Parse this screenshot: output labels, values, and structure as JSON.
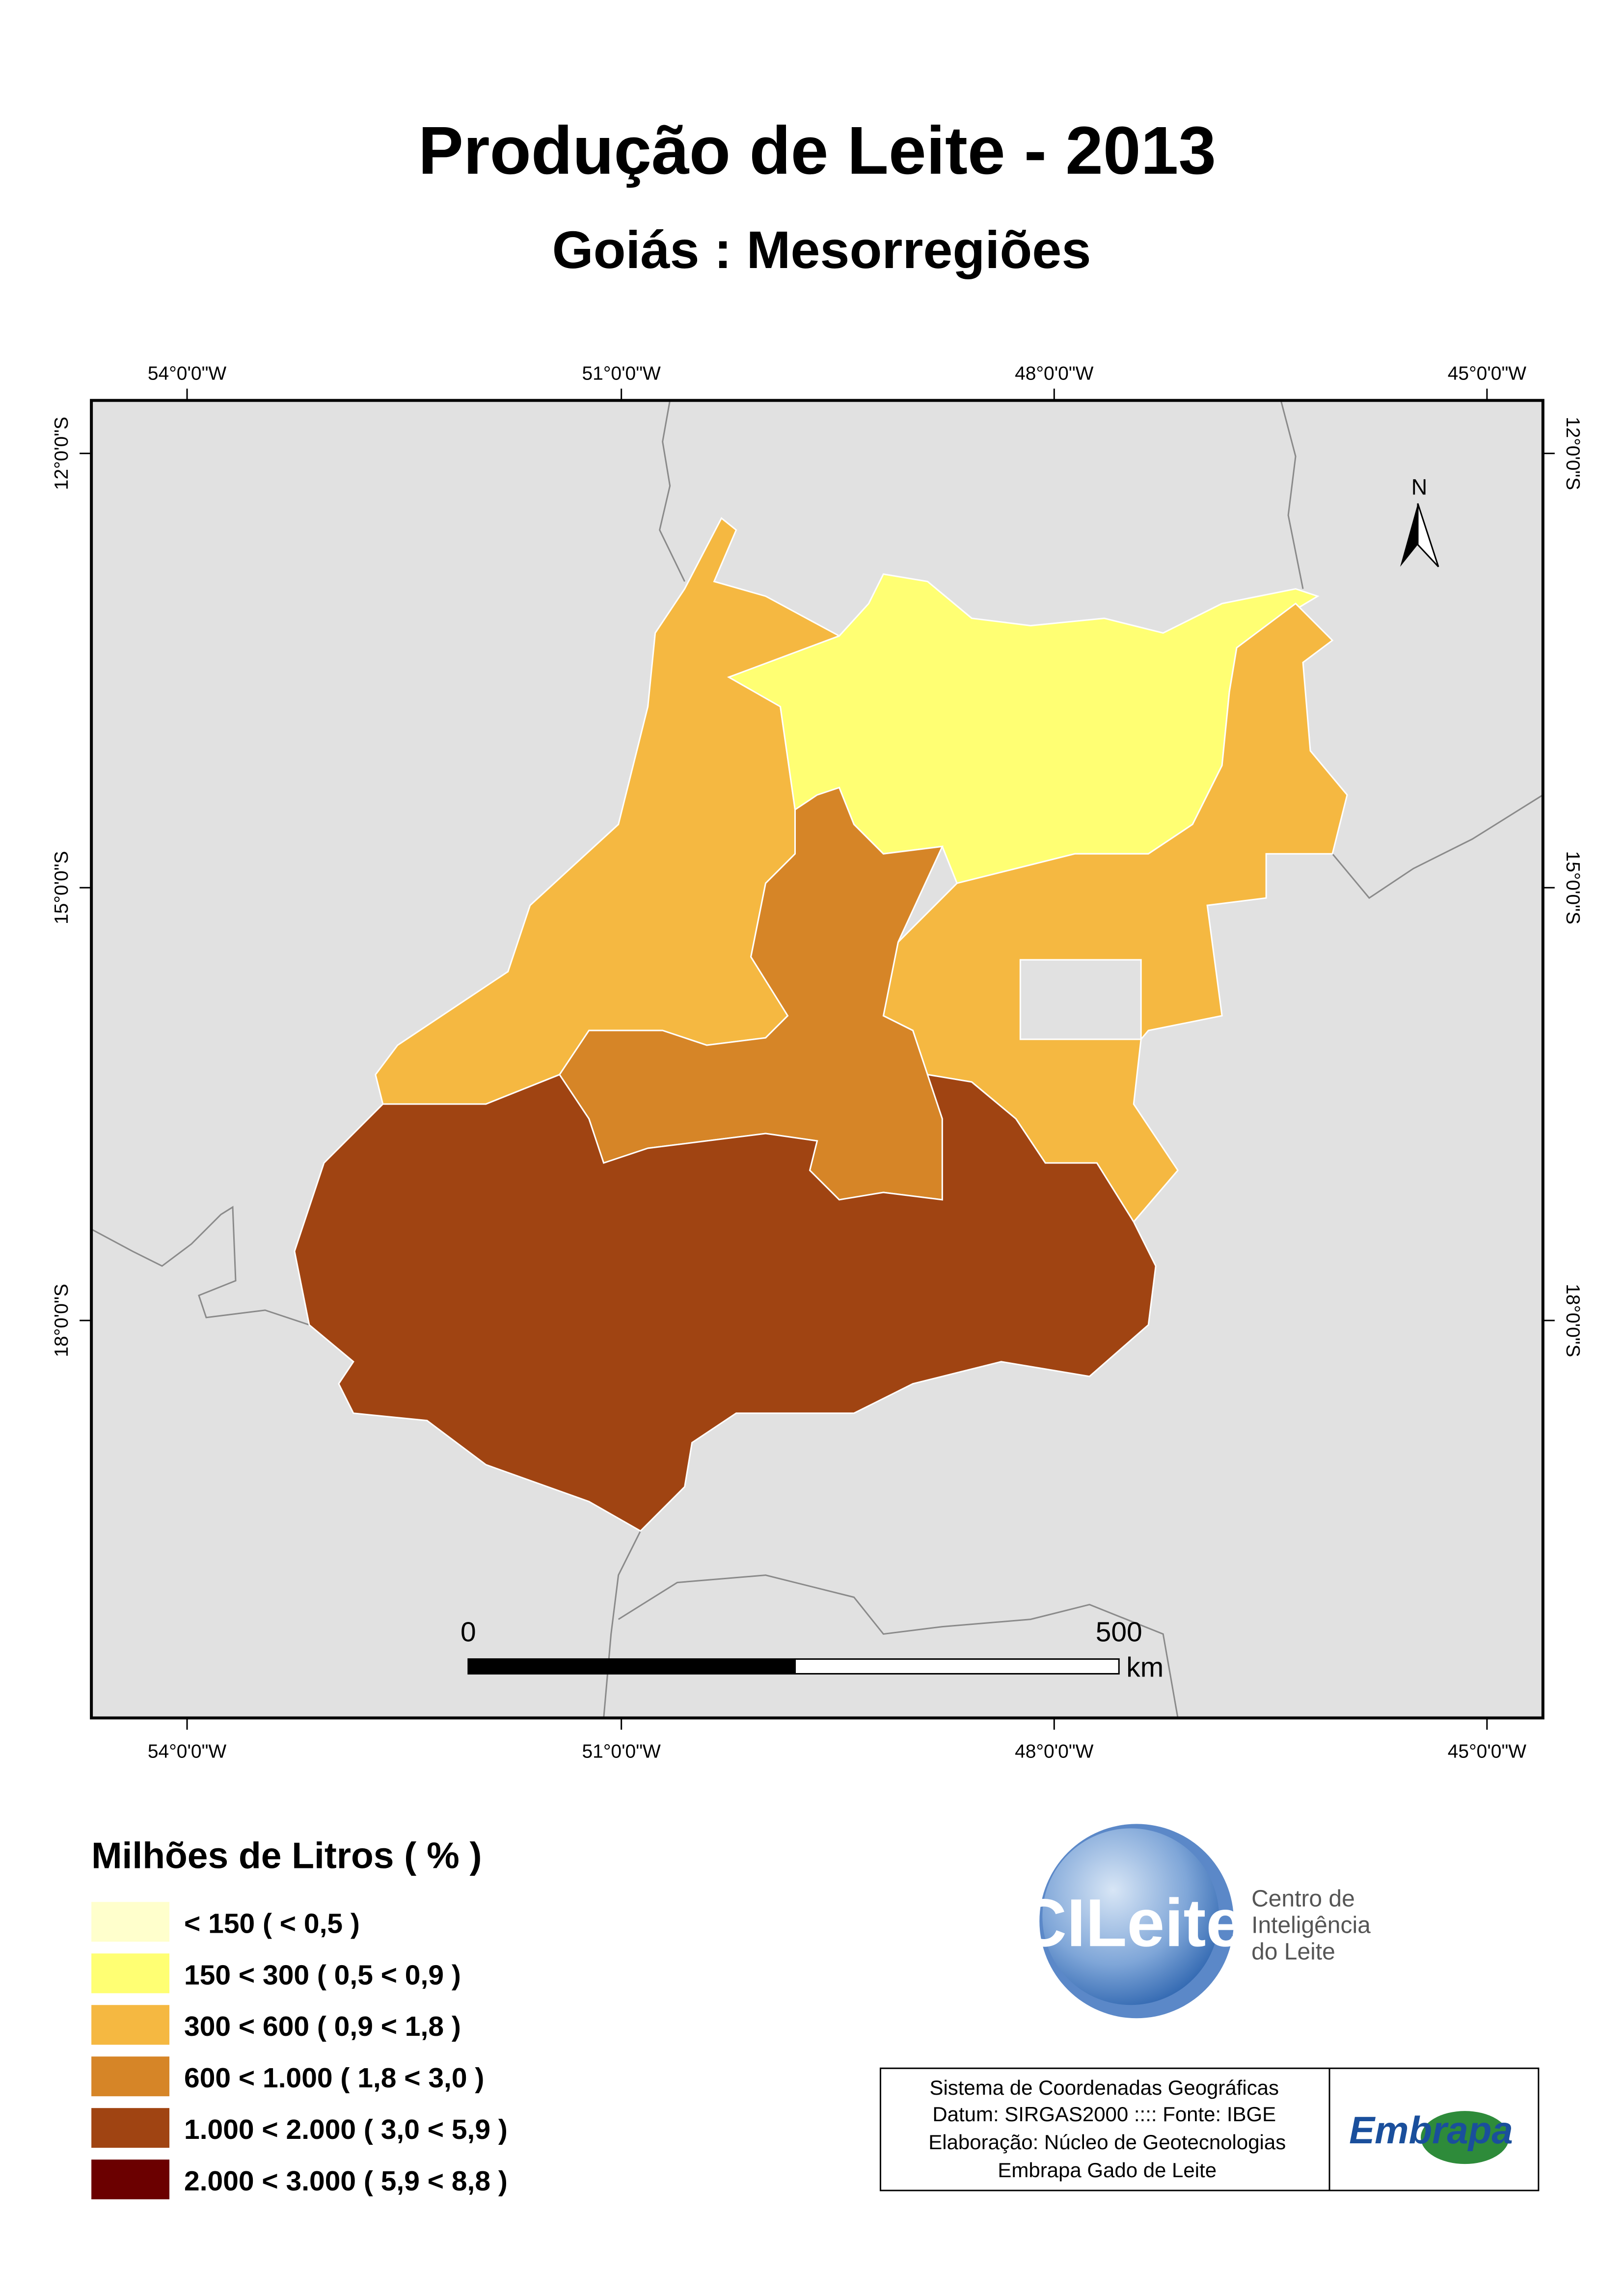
{
  "title": "Produção de Leite - 2013",
  "subtitle": "Goiás : Mesorregiões",
  "map": {
    "longitude_labels": [
      "54°0'0\"W",
      "51°0'0\"W",
      "48°0'0\"W",
      "45°0'0\"W"
    ],
    "latitude_labels": [
      "12°0'0\"S",
      "15°0'0\"S",
      "18°0'0\"S"
    ],
    "north": "N",
    "scale_bar": {
      "start": "0",
      "end": "500",
      "unit": "km"
    }
  },
  "legend": {
    "title": "Milhões de Litros ( % )",
    "items": [
      {
        "label": "< 150 ( < 0,5 )",
        "color": "#ffffcc"
      },
      {
        "label": "150 < 300 ( 0,5 < 0,9 )",
        "color": "#ffff73"
      },
      {
        "label": "300 < 600 ( 0,9 < 1,8 )",
        "color": "#f5b841"
      },
      {
        "label": "600 < 1.000 ( 1,8 < 3,0 )",
        "color": "#d68527"
      },
      {
        "label": "1.000 < 2.000 ( 3,0 < 5,9 )",
        "color": "#a04412"
      },
      {
        "label": "2.000 < 3.000 ( 5,9 < 8,8 )",
        "color": "#6b0000"
      }
    ]
  },
  "logo": {
    "name": "CILeite",
    "lines": [
      "Centro de",
      "Inteligência",
      "do Leite"
    ]
  },
  "info_box": {
    "lines": [
      "Sistema de Coordenadas Geográficas",
      "Datum: SIRGAS2000  ::::  Fonte: IBGE",
      "Elaboração: Núcleo de Geotecnologias",
      "Embrapa Gado de Leite"
    ],
    "brand": "Embrapa"
  }
}
